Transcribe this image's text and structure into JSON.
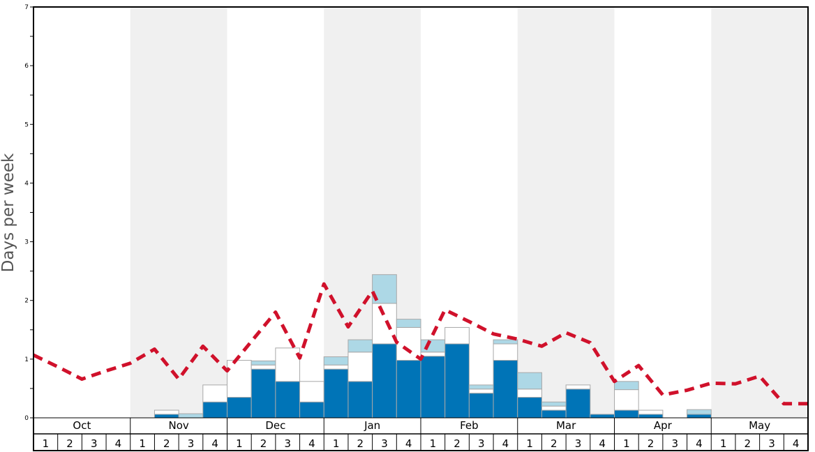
{
  "chart_data": {
    "type": "bar",
    "ylabel": "Days per week",
    "ylim": [
      0,
      7
    ],
    "y_ticks": [
      "0",
      "1",
      "2",
      "3",
      "4",
      "5",
      "6",
      "7"
    ],
    "months": [
      "Oct",
      "Nov",
      "Dec",
      "Jan",
      "Feb",
      "Mar",
      "Apr",
      "May"
    ],
    "week_labels": [
      "1",
      "2",
      "3",
      "4"
    ],
    "stack_order": [
      "dark_blue",
      "white",
      "light_blue"
    ],
    "colors": {
      "dark_blue": "#0074b7",
      "white": "#ffffff",
      "light_blue": "#add8e6",
      "line": "#d0112b",
      "band": "#f0f0f0"
    },
    "series": [
      {
        "values": [
          0,
          0,
          0,
          0,
          0,
          0.06,
          0,
          0.27,
          0.35,
          0.83,
          0.62,
          0.27,
          0.83,
          0.62,
          1.26,
          0.98,
          1.05,
          1.26,
          0.42,
          0.98,
          0.35,
          0.13,
          0.49,
          0.06,
          0.13,
          0.06,
          0,
          0.06,
          0,
          0,
          0,
          0
        ]
      },
      {
        "values": [
          0,
          0,
          0,
          0,
          0,
          0.07,
          0,
          0.29,
          0.63,
          0.07,
          0.57,
          0.35,
          0.07,
          0.5,
          0.69,
          0.56,
          0.07,
          0.28,
          0.07,
          0.28,
          0.14,
          0.07,
          0.07,
          0,
          0.35,
          0.07,
          0,
          0,
          0,
          0,
          0,
          0
        ]
      },
      {
        "values": [
          0,
          0,
          0,
          0,
          0,
          0,
          0.07,
          0,
          0,
          0.07,
          0,
          0,
          0.14,
          0.21,
          0.49,
          0.14,
          0.21,
          0,
          0.07,
          0.07,
          0.28,
          0.07,
          0,
          0,
          0.14,
          0,
          0,
          0.08,
          0,
          0,
          0,
          0
        ]
      },
      {
        "type": "line",
        "style": "dashed",
        "values": [
          1.07,
          0.87,
          0.66,
          0.8,
          0.93,
          1.17,
          0.66,
          1.22,
          0.8,
          1.3,
          1.8,
          1.02,
          2.28,
          1.55,
          2.16,
          1.29,
          1.0,
          1.84,
          1.64,
          1.43,
          1.34,
          1.22,
          1.45,
          1.28,
          0.62,
          0.89,
          0.39,
          0.47,
          0.59,
          0.58,
          0.71,
          0.24,
          0.24
        ]
      }
    ]
  }
}
